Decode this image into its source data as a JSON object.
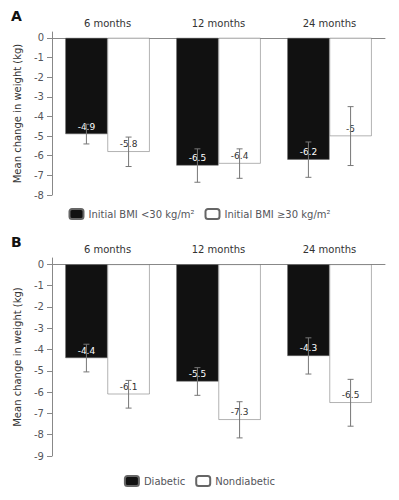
{
  "chart_data": [
    {
      "type": "bar",
      "title": "A",
      "categories": [
        "6 months",
        "12 months",
        "24 months"
      ],
      "series": [
        {
          "name": "Initial BMI <30 kg/m²",
          "color": "#111111",
          "values": [
            -4.9,
            -6.5,
            -6.2
          ],
          "errors": [
            0.5,
            0.85,
            0.9
          ]
        },
        {
          "name": "Initial BMI ≥30 kg/m²",
          "color": "#ffffff",
          "values": [
            -5.8,
            -6.4,
            -5.0
          ],
          "errors": [
            0.75,
            0.75,
            1.5
          ]
        }
      ],
      "ylim": [
        -8,
        0.3
      ],
      "yticks": [
        0,
        -1,
        -2,
        -3,
        -4,
        -5,
        -6,
        -7,
        -8
      ],
      "ylabel": "Mean change in weight (kg)",
      "data_labels": true,
      "grid": false,
      "legend": "bottom"
    },
    {
      "type": "bar",
      "title": "B",
      "categories": [
        "6 months",
        "12 months",
        "24 months"
      ],
      "series": [
        {
          "name": "Diabetic",
          "color": "#111111",
          "values": [
            -4.4,
            -5.5,
            -4.3
          ],
          "errors": [
            0.65,
            0.65,
            0.85
          ]
        },
        {
          "name": "Nondiabetic",
          "color": "#ffffff",
          "values": [
            -6.1,
            -7.3,
            -6.5
          ],
          "errors": [
            0.65,
            0.85,
            1.1
          ]
        }
      ],
      "ylim": [
        -9,
        0.3
      ],
      "yticks": [
        0,
        -1,
        -2,
        -3,
        -4,
        -5,
        -6,
        -7,
        -8,
        -9
      ],
      "ylabel": "Mean change in weight (kg)",
      "data_labels": true,
      "grid": false,
      "legend": "bottom"
    }
  ]
}
